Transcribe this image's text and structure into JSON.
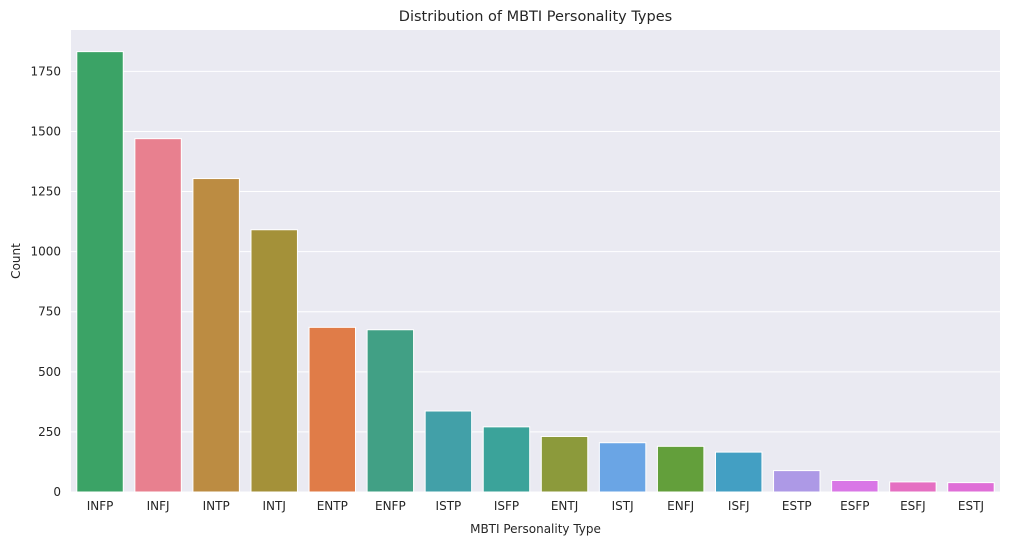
{
  "chart_data": {
    "type": "bar",
    "title": "Distribution of MBTI Personality Types",
    "xlabel": "MBTI Personality Type",
    "ylabel": "Count",
    "categories": [
      "INFP",
      "INFJ",
      "INTP",
      "INTJ",
      "ENTP",
      "ENFP",
      "ISTP",
      "ISFP",
      "ENTJ",
      "ISTJ",
      "ENFJ",
      "ISFJ",
      "ESTP",
      "ESFP",
      "ESFJ",
      "ESTJ"
    ],
    "values": [
      1832,
      1470,
      1304,
      1091,
      685,
      675,
      337,
      271,
      231,
      205,
      190,
      166,
      89,
      48,
      42,
      39
    ],
    "colors": [
      "#3ba366",
      "#e8808f",
      "#bc8c42",
      "#a49139",
      "#e07c48",
      "#41a085",
      "#42a0a8",
      "#3ba39a",
      "#8c9a3b",
      "#6aa5e5",
      "#639f3b",
      "#439fc3",
      "#ad99e6",
      "#d977e6",
      "#e56fc2",
      "#df6ed7"
    ],
    "ylim": [
      0,
      1922
    ],
    "yticks": [
      0,
      250,
      500,
      750,
      1000,
      1250,
      1500,
      1750
    ],
    "grid": true,
    "legend": "none"
  }
}
